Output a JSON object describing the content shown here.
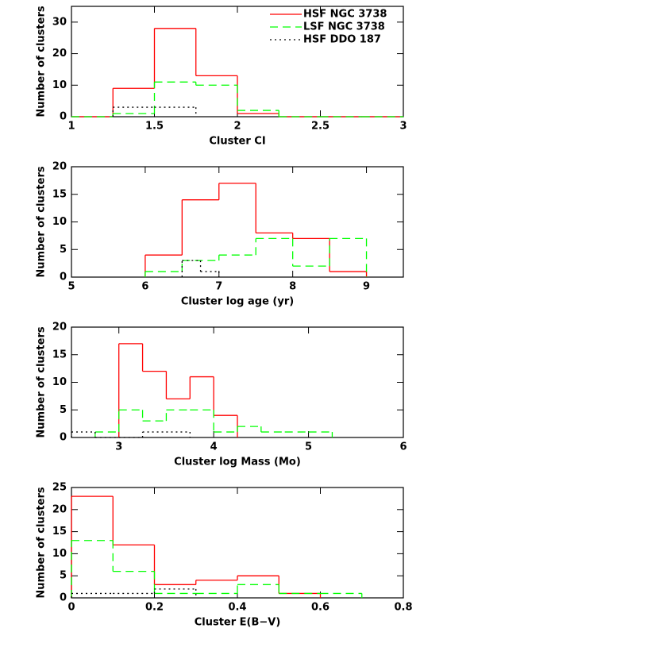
{
  "chart_data": [
    {
      "type": "histogram",
      "xlabel": "Cluster CI",
      "ylabel": "Number of clusters",
      "xlim": [
        1,
        3
      ],
      "ylim": [
        0,
        35
      ],
      "xticks": [
        1,
        1.5,
        2,
        2.5,
        3
      ],
      "yticks": [
        0,
        10,
        20,
        30
      ],
      "legend": "upper right",
      "series": [
        {
          "name": "HSF NGC 3738",
          "color": "#ff0000",
          "linestyle": "solid",
          "bins": [
            1,
            1.25,
            1.5,
            1.75,
            2,
            2.25,
            2.5,
            2.75,
            3
          ],
          "values": [
            0,
            9,
            28,
            13,
            1,
            0,
            0,
            0
          ]
        },
        {
          "name": "LSF NGC 3738",
          "color": "#00ff00",
          "linestyle": "dashed",
          "bins": [
            1,
            1.25,
            1.5,
            1.75,
            2,
            2.25,
            2.5,
            2.75,
            3
          ],
          "values": [
            0,
            1,
            11,
            10,
            2,
            0,
            0,
            0
          ]
        },
        {
          "name": "HSF DDO 187",
          "color": "#000000",
          "linestyle": "dotted",
          "bins": [
            1.25,
            1.5,
            1.75
          ],
          "values": [
            3,
            3
          ]
        }
      ]
    },
    {
      "type": "histogram",
      "xlabel": "Cluster log age (yr)",
      "ylabel": "Number of clusters",
      "xlim": [
        5,
        9.5
      ],
      "ylim": [
        0,
        20
      ],
      "xticks": [
        5,
        6,
        7,
        8,
        9
      ],
      "yticks": [
        0,
        5,
        10,
        15,
        20
      ],
      "series": [
        {
          "color": "#ff0000",
          "linestyle": "solid",
          "bins": [
            6,
            6.5,
            7,
            7.5,
            8,
            8.5,
            9
          ],
          "values": [
            4,
            14,
            17,
            8,
            7,
            1
          ]
        },
        {
          "color": "#00ff00",
          "linestyle": "dashed",
          "bins": [
            6,
            6.5,
            7,
            7.5,
            8,
            8.5,
            9
          ],
          "values": [
            1,
            3,
            4,
            7,
            2,
            7
          ]
        },
        {
          "color": "#000000",
          "linestyle": "dotted",
          "bins": [
            6.5,
            6.75,
            7
          ],
          "values": [
            3,
            1
          ]
        }
      ]
    },
    {
      "type": "histogram",
      "xlabel": "Cluster log Mass (Mo)",
      "ylabel": "Number of clusters",
      "xlim": [
        2.5,
        6
      ],
      "ylim": [
        0,
        20
      ],
      "xticks": [
        3,
        4,
        5,
        6
      ],
      "yticks": [
        0,
        5,
        10,
        15,
        20
      ],
      "series": [
        {
          "color": "#ff0000",
          "linestyle": "solid",
          "bins": [
            3,
            3.25,
            3.5,
            3.75,
            4,
            4.25
          ],
          "values": [
            17,
            12,
            7,
            11,
            4
          ]
        },
        {
          "color": "#00ff00",
          "linestyle": "dashed",
          "bins": [
            2.75,
            3,
            3.25,
            3.5,
            3.75,
            4,
            4.25,
            4.5,
            4.75,
            5,
            5.25
          ],
          "values": [
            1,
            5,
            3,
            5,
            5,
            1,
            2,
            1,
            1,
            1
          ]
        },
        {
          "color": "#000000",
          "linestyle": "dotted",
          "bins": [
            2.5,
            2.75,
            3,
            3.25,
            3.5,
            3.75
          ],
          "values": [
            1,
            0,
            0,
            1,
            1
          ]
        }
      ]
    },
    {
      "type": "histogram",
      "xlabel": "Cluster E(B−V)",
      "ylabel": "Number of clusters",
      "xlim": [
        0,
        0.8
      ],
      "ylim": [
        0,
        25
      ],
      "xticks": [
        0,
        0.2,
        0.4,
        0.6,
        0.8
      ],
      "yticks": [
        0,
        5,
        10,
        15,
        20,
        25
      ],
      "series": [
        {
          "color": "#ff0000",
          "linestyle": "solid",
          "bins": [
            0,
            0.1,
            0.2,
            0.3,
            0.4,
            0.5,
            0.6
          ],
          "values": [
            23,
            12,
            3,
            4,
            5,
            1
          ]
        },
        {
          "color": "#00ff00",
          "linestyle": "dashed",
          "bins": [
            0,
            0.1,
            0.2,
            0.3,
            0.4,
            0.5,
            0.6,
            0.7
          ],
          "values": [
            13,
            6,
            1,
            1,
            3,
            1,
            1
          ]
        },
        {
          "color": "#000000",
          "linestyle": "dotted",
          "bins": [
            0,
            0.1,
            0.2,
            0.3
          ],
          "values": [
            1,
            1,
            2
          ]
        }
      ]
    }
  ]
}
